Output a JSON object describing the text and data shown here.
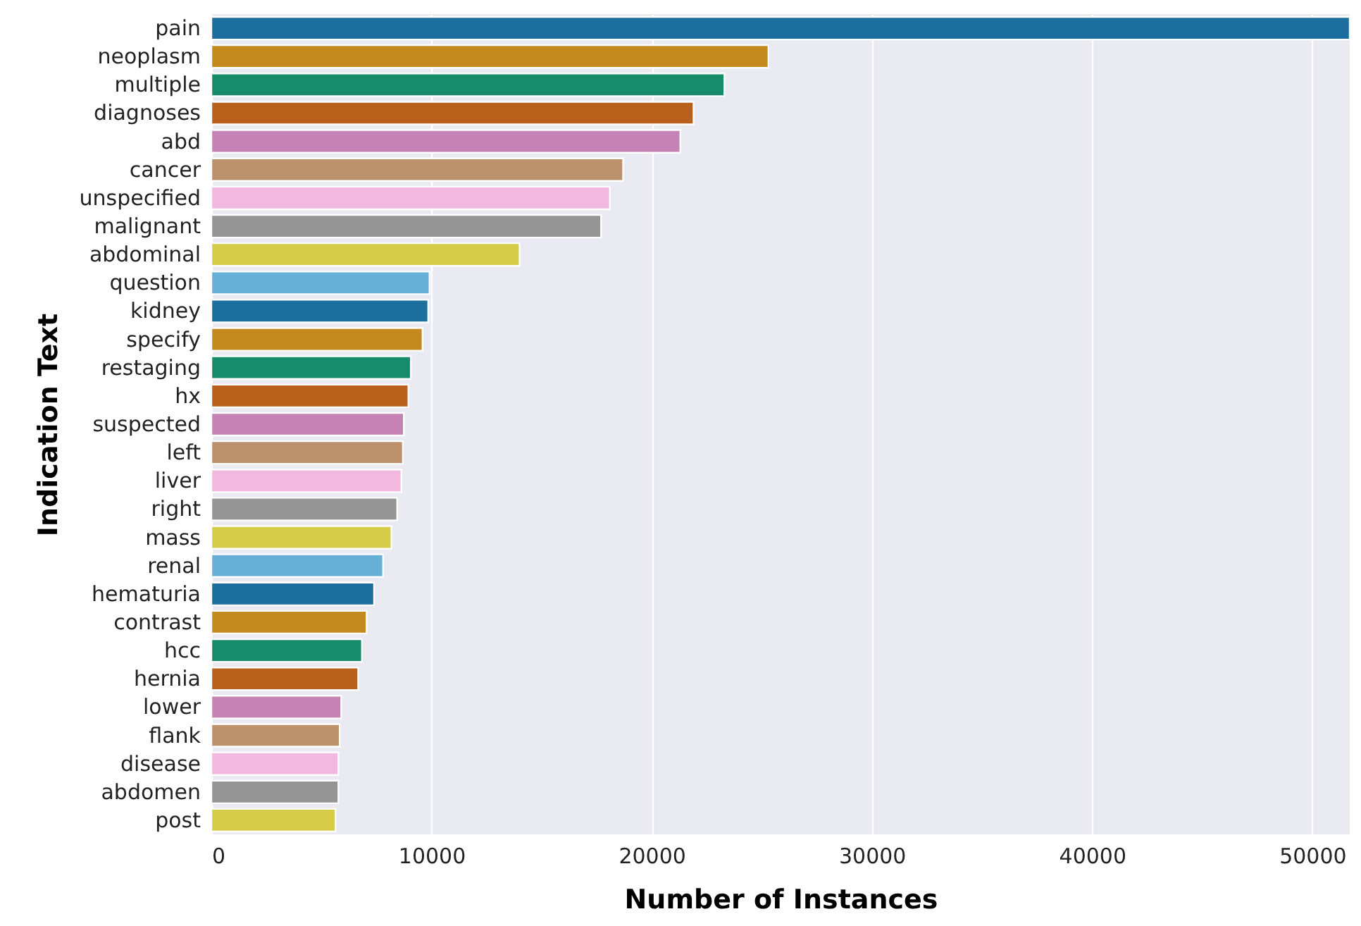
{
  "chart_data": {
    "type": "bar",
    "orientation": "horizontal",
    "xlabel": "Number of Instances",
    "ylabel": "Indication Text",
    "categories": [
      "pain",
      "neoplasm",
      "multiple",
      "diagnoses",
      "abd",
      "cancer",
      "unspecified",
      "malignant",
      "abdominal",
      "question",
      "kidney",
      "specify",
      "restaging",
      "hx",
      "suspected",
      "left",
      "liver",
      "right",
      "mass",
      "renal",
      "hematuria",
      "contrast",
      "hcc",
      "hernia",
      "lower",
      "flank",
      "disease",
      "abdomen",
      "post"
    ],
    "values": [
      51700,
      25300,
      23300,
      21900,
      21300,
      18700,
      18100,
      17700,
      14000,
      9910,
      9850,
      9590,
      9060,
      8950,
      8740,
      8700,
      8630,
      8440,
      8180,
      7800,
      7390,
      7050,
      6840,
      6670,
      5900,
      5830,
      5770,
      5770,
      5640
    ],
    "colors": [
      "#1b6e9e",
      "#c4891f",
      "#168c6b",
      "#b9601c",
      "#c482b5",
      "#bc916e",
      "#f2b8e0",
      "#959595",
      "#d6cc4a",
      "#68afd8",
      "#1b6e9e",
      "#c4891f",
      "#168c6b",
      "#b9601c",
      "#c482b5",
      "#bc916e",
      "#f2b8e0",
      "#959595",
      "#d6cc4a",
      "#68afd8",
      "#1b6e9e",
      "#c4891f",
      "#168c6b",
      "#b9601c",
      "#c482b5",
      "#bc916e",
      "#f2b8e0",
      "#959595",
      "#d6cc4a"
    ],
    "xlim": [
      0,
      51700
    ],
    "xticks": [
      0,
      10000,
      20000,
      30000,
      40000,
      50000
    ],
    "grid": "x"
  }
}
